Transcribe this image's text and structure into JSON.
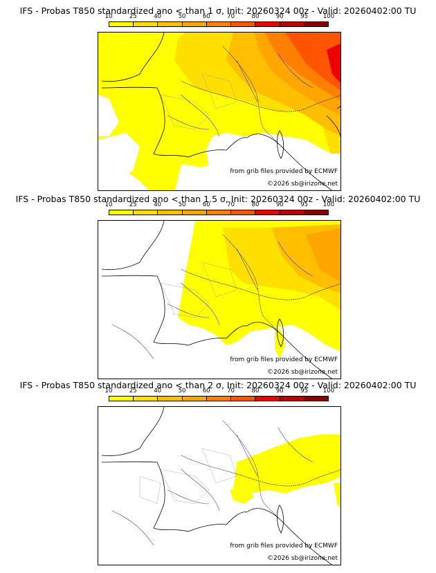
{
  "panels": [
    {
      "title": "IFS - Probas T850  standardized ano < than 1 σ, Init: 20260324 00z - Valid: 20260402:00 TU",
      "credit": "from grib files provided by ECMWF",
      "copyright": "©2026 sb@irizone.net"
    },
    {
      "title": "IFS - Probas T850  standardized ano < than 1.5 σ, Init: 20260324 00z - Valid: 20260402:00 TU",
      "credit": "from grib files provided by ECMWF",
      "copyright": "©2026 sb@irizone.net"
    },
    {
      "title": "IFS - Probas T850  standardized ano < than 2 σ, Init: 20260324 00z - Valid: 20260402:00 TU",
      "credit": "from grib files provided by ECMWF",
      "copyright": "©2026 sb@irizone.net"
    }
  ],
  "legend": {
    "levels": [
      "10",
      "25",
      "40",
      "50",
      "60",
      "70",
      "80",
      "90",
      "95",
      "100"
    ],
    "colors": [
      "#ffff00",
      "#ffdf00",
      "#ffbf00",
      "#ffa500",
      "#ff8000",
      "#ff5500",
      "#ee0000",
      "#c00000",
      "#8b0000"
    ]
  },
  "colors": {
    "coast": "#000000",
    "rivers": "#3a3acc",
    "borders": "#999999"
  }
}
